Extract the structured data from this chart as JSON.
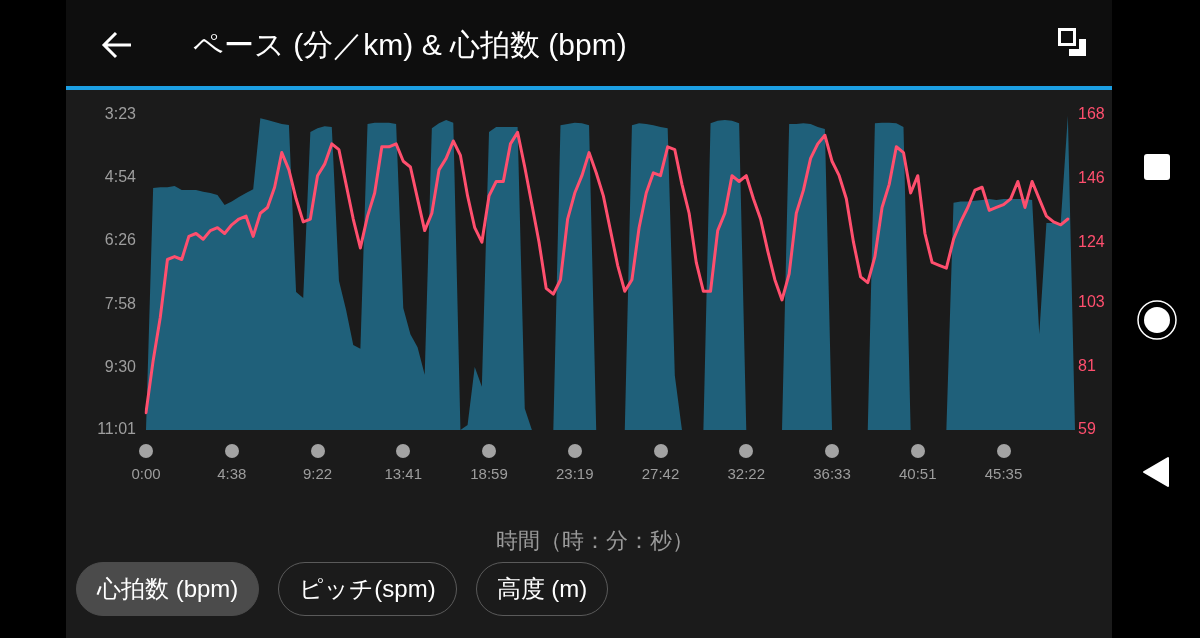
{
  "chart_data": {
    "type": "area",
    "title": "ペース (分／km) & 心拍数 (bpm)",
    "xlabel": "時間（時：分：秒）",
    "annotations": [
      "心拍数 (bpm)",
      "ピッチ(spm)",
      "高度 (m)"
    ],
    "categories": [
      "0:00",
      null,
      null,
      null,
      null,
      null,
      null,
      null,
      null,
      null,
      null,
      null,
      "4:38",
      null,
      null,
      null,
      null,
      null,
      null,
      null,
      null,
      null,
      null,
      null,
      "9:22",
      null,
      null,
      null,
      null,
      null,
      null,
      null,
      null,
      null,
      null,
      null,
      "13:41",
      null,
      null,
      null,
      null,
      null,
      null,
      null,
      null,
      null,
      null,
      null,
      "18:59",
      null,
      null,
      null,
      null,
      null,
      null,
      null,
      null,
      null,
      null,
      null,
      "23:19",
      null,
      null,
      null,
      null,
      null,
      null,
      null,
      null,
      null,
      null,
      null,
      "27:42",
      null,
      null,
      null,
      null,
      null,
      null,
      null,
      null,
      null,
      null,
      null,
      "32:22",
      null,
      null,
      null,
      null,
      null,
      null,
      null,
      null,
      null,
      null,
      null,
      "36:33",
      null,
      null,
      null,
      null,
      null,
      null,
      null,
      null,
      null,
      null,
      null,
      "40:51",
      null,
      null,
      null,
      null,
      null,
      null,
      null,
      null,
      null,
      null,
      null,
      "45:35",
      null,
      null,
      null,
      null,
      null,
      null,
      null,
      null,
      null,
      null
    ],
    "ylim": [
      11.02,
      3.38
    ],
    "yticks": [
      {
        "value": 3.38,
        "label": "3:23"
      },
      {
        "value": 4.9,
        "label": "4:54"
      },
      {
        "value": 6.43,
        "label": "6:26"
      },
      {
        "value": 7.97,
        "label": "7:58"
      },
      {
        "value": 9.5,
        "label": "9:30"
      },
      {
        "value": 11.02,
        "label": "11:01"
      }
    ],
    "y2lim": [
      59,
      168
    ],
    "y2ticks": [
      59,
      81,
      103,
      124,
      146,
      168
    ],
    "series": [
      {
        "color": "#1f607a",
        "values": [
          11.02,
          5.15,
          5.13,
          5.13,
          5.1,
          5.2,
          5.2,
          5.2,
          5.24,
          5.27,
          5.32,
          5.56,
          5.48,
          5.37,
          5.27,
          5.18,
          3.46,
          3.5,
          3.55,
          3.6,
          3.62,
          7.67,
          7.82,
          3.79,
          3.7,
          3.65,
          3.67,
          7.4,
          8.11,
          8.96,
          9.05,
          3.6,
          3.57,
          3.57,
          3.57,
          3.6,
          8.06,
          8.7,
          9.01,
          9.68,
          3.7,
          3.58,
          3.5,
          3.57,
          11.02,
          10.9,
          9.49,
          9.97,
          3.79,
          3.67,
          3.67,
          3.67,
          3.67,
          10.5,
          11.02,
          11.02,
          11.02,
          11.02,
          3.63,
          3.6,
          3.57,
          3.58,
          3.63,
          11.02,
          11.02,
          11.02,
          11.02,
          11.02,
          3.63,
          3.58,
          3.6,
          3.63,
          3.67,
          3.7,
          9.7,
          11.02,
          11.02,
          11.02,
          11.02,
          3.58,
          3.52,
          3.5,
          3.52,
          3.58,
          11.02,
          11.02,
          11.02,
          11.02,
          11.02,
          11.02,
          3.6,
          3.6,
          3.58,
          3.6,
          3.67,
          3.72,
          11.02,
          11.02,
          11.02,
          11.02,
          11.02,
          11.02,
          3.58,
          3.57,
          3.57,
          3.58,
          3.67,
          11.02,
          11.02,
          11.02,
          11.02,
          11.02,
          11.02,
          5.51,
          5.48,
          5.48,
          5.46,
          5.44,
          5.42,
          5.44,
          5.42,
          5.42,
          5.42,
          5.42,
          5.44,
          8.7,
          6.0,
          6.0,
          6.0,
          3.4,
          11.02
        ]
      },
      {
        "type": "line",
        "axis": "y2",
        "color": "#ff4f6e",
        "values": [
          65,
          83,
          98,
          118,
          119,
          118,
          126,
          127,
          125,
          128,
          129,
          127,
          130,
          132,
          133,
          126,
          134,
          136,
          143,
          155,
          149,
          139,
          131,
          132,
          147,
          151,
          158,
          156,
          144,
          132,
          122,
          133,
          141,
          157,
          157,
          158,
          152,
          150,
          139,
          128,
          134,
          149,
          153,
          159,
          154,
          140,
          129,
          124,
          140,
          145,
          145,
          158,
          162,
          150,
          137,
          124,
          108,
          106,
          111,
          132,
          141,
          147,
          155,
          148,
          140,
          128,
          116,
          107,
          111,
          129,
          141,
          148,
          147,
          157,
          156,
          144,
          134,
          117,
          107,
          107,
          128,
          134,
          147,
          145,
          147,
          139,
          132,
          121,
          111,
          104,
          113,
          134,
          142,
          153,
          158,
          161,
          152,
          147,
          139,
          124,
          112,
          110,
          119,
          136,
          144,
          157,
          155,
          141,
          147,
          127,
          117,
          116,
          115,
          125,
          131,
          136,
          142,
          143,
          135,
          136,
          137,
          139,
          145,
          136,
          145,
          139,
          133,
          131,
          130,
          132,
          null
        ]
      }
    ]
  }
}
